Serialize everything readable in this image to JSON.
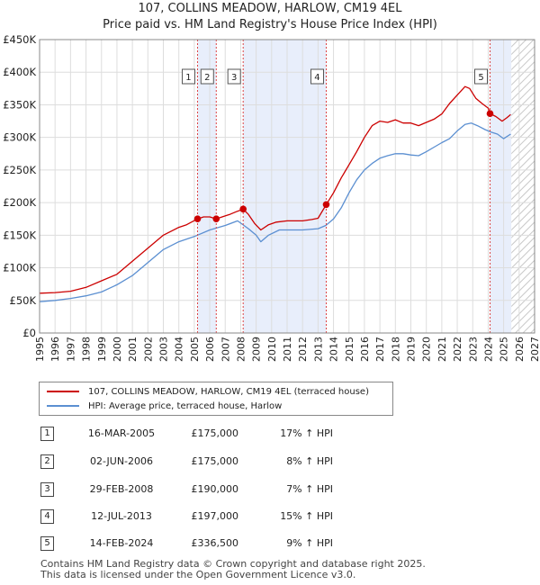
{
  "chart_data": {
    "type": "line",
    "title": "107, COLLINS MEADOW, HARLOW, CM19 4EL",
    "subtitle": "Price paid vs. HM Land Registry's House Price Index (HPI)",
    "xlim": [
      1995,
      2027
    ],
    "ylim": [
      0,
      450000
    ],
    "x_ticks": [
      1995,
      1996,
      1997,
      1998,
      1999,
      2000,
      2001,
      2002,
      2003,
      2004,
      2005,
      2006,
      2007,
      2008,
      2009,
      2010,
      2011,
      2012,
      2013,
      2014,
      2015,
      2016,
      2017,
      2018,
      2019,
      2020,
      2021,
      2022,
      2023,
      2024,
      2025,
      2026,
      2027
    ],
    "y_ticks": [
      {
        "value": 0,
        "label": "£0"
      },
      {
        "value": 50000,
        "label": "£50K"
      },
      {
        "value": 100000,
        "label": "£100K"
      },
      {
        "value": 150000,
        "label": "£150K"
      },
      {
        "value": 200000,
        "label": "£200K"
      },
      {
        "value": 250000,
        "label": "£250K"
      },
      {
        "value": 300000,
        "label": "£300K"
      },
      {
        "value": 350000,
        "label": "£350K"
      },
      {
        "value": 400000,
        "label": "£400K"
      },
      {
        "value": 450000,
        "label": "£450K"
      }
    ],
    "grid": true,
    "forecast_hatch_from": 2025.5,
    "series": [
      {
        "name": "107, COLLINS MEADOW, HARLOW, CM19 4EL (terraced house)",
        "color": "#cc0000",
        "x": [
          1995.0,
          1996.0,
          1997.0,
          1998.0,
          1999.0,
          2000.0,
          2001.0,
          2002.0,
          2003.0,
          2004.0,
          2004.5,
          2005.21,
          2005.6,
          2006.0,
          2006.42,
          2006.8,
          2007.3,
          2007.7,
          2008.16,
          2008.5,
          2008.9,
          2009.3,
          2009.8,
          2010.3,
          2011.0,
          2011.5,
          2012.0,
          2012.6,
          2013.0,
          2013.53,
          2014.0,
          2014.5,
          2015.0,
          2015.5,
          2016.0,
          2016.5,
          2017.0,
          2017.5,
          2018.0,
          2018.5,
          2019.0,
          2019.5,
          2020.0,
          2020.5,
          2021.0,
          2021.5,
          2022.0,
          2022.5,
          2022.8,
          2023.2,
          2023.6,
          2024.0,
          2024.12,
          2024.5,
          2024.9,
          2025.2,
          2025.45
        ],
        "values": [
          61000,
          62000,
          64000,
          70000,
          80000,
          90000,
          110000,
          130000,
          150000,
          162000,
          166000,
          175000,
          178000,
          178000,
          175000,
          178000,
          182000,
          186000,
          190000,
          182000,
          168000,
          158000,
          166000,
          170000,
          172000,
          172000,
          172000,
          174000,
          176000,
          197000,
          215000,
          238000,
          258000,
          278000,
          300000,
          318000,
          325000,
          323000,
          327000,
          322000,
          322000,
          318000,
          323000,
          328000,
          336000,
          352000,
          365000,
          378000,
          375000,
          360000,
          352000,
          345000,
          336500,
          332000,
          325000,
          330000,
          335000
        ]
      },
      {
        "name": "HPI: Average price, terraced house, Harlow",
        "color": "#5b8fd1",
        "x": [
          1995.0,
          1996.0,
          1997.0,
          1998.0,
          1999.0,
          2000.0,
          2001.0,
          2002.0,
          2003.0,
          2004.0,
          2005.0,
          2006.0,
          2007.0,
          2007.8,
          2008.5,
          2009.0,
          2009.3,
          2009.8,
          2010.5,
          2011.0,
          2012.0,
          2013.0,
          2013.5,
          2014.0,
          2014.5,
          2015.0,
          2015.5,
          2016.0,
          2016.5,
          2017.0,
          2017.5,
          2018.0,
          2018.5,
          2019.0,
          2019.5,
          2020.0,
          2020.5,
          2021.0,
          2021.5,
          2022.0,
          2022.5,
          2022.9,
          2023.3,
          2023.8,
          2024.2,
          2024.6,
          2025.0,
          2025.45
        ],
        "values": [
          48000,
          50000,
          53000,
          57000,
          63000,
          74000,
          88000,
          108000,
          128000,
          140000,
          148000,
          158000,
          165000,
          172000,
          160000,
          150000,
          140000,
          150000,
          158000,
          158000,
          158000,
          160000,
          165000,
          175000,
          192000,
          215000,
          235000,
          250000,
          260000,
          268000,
          272000,
          275000,
          275000,
          273000,
          272000,
          278000,
          285000,
          292000,
          298000,
          310000,
          320000,
          322000,
          318000,
          312000,
          308000,
          305000,
          298000,
          305000
        ]
      }
    ],
    "transactions": [
      {
        "num": "1",
        "date": "16-MAR-2005",
        "price": "£175,000",
        "hpi": "17% ↑ HPI",
        "x": 2005.21,
        "value": 175000
      },
      {
        "num": "2",
        "date": "02-JUN-2006",
        "price": "£175,000",
        "hpi": "8% ↑ HPI",
        "x": 2006.42,
        "value": 175000
      },
      {
        "num": "3",
        "date": "29-FEB-2008",
        "price": "£190,000",
        "hpi": "7% ↑ HPI",
        "x": 2008.16,
        "value": 190000
      },
      {
        "num": "4",
        "date": "12-JUL-2013",
        "price": "£197,000",
        "hpi": "15% ↑ HPI",
        "x": 2013.53,
        "value": 197000
      },
      {
        "num": "5",
        "date": "14-FEB-2024",
        "price": "£336,500",
        "hpi": "9% ↑ HPI",
        "x": 2024.12,
        "value": 336500
      }
    ],
    "legend": {
      "placement": "bottom",
      "entries": [
        "107, COLLINS MEADOW, HARLOW, CM19 4EL (terraced house)",
        "HPI: Average price, terraced house, Harlow"
      ]
    }
  },
  "footer": {
    "line1": "Contains HM Land Registry data © Crown copyright and database right 2025.",
    "line2": "This data is licensed under the Open Government Licence v3.0."
  }
}
